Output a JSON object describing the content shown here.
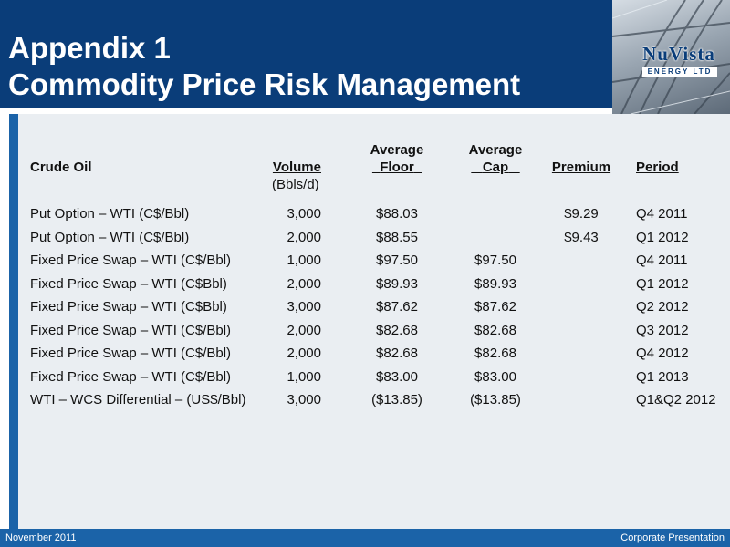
{
  "header": {
    "title_line1": "Appendix 1",
    "title_line2": "Commodity Price Risk Management",
    "logo_word": "NuVista",
    "logo_sub": "ENERGY LTD"
  },
  "table": {
    "headers": {
      "name": "Crude Oil",
      "volume": "Volume",
      "volume_unit": "(Bbls/d)",
      "floor_top": "Average",
      "floor": "Floor",
      "cap_top": "Average",
      "cap": "Cap",
      "premium": "Premium",
      "period": "Period"
    },
    "rows": [
      {
        "name": "Put Option – WTI (C$/Bbl)",
        "volume": "3,000",
        "floor": "$88.03",
        "cap": "",
        "premium": "$9.29",
        "period": "Q4 2011"
      },
      {
        "name": "Put Option – WTI (C$/Bbl)",
        "volume": "2,000",
        "floor": "$88.55",
        "cap": "",
        "premium": "$9.43",
        "period": "Q1 2012"
      },
      {
        "name": "Fixed Price Swap – WTI (C$/Bbl)",
        "volume": "1,000",
        "floor": "$97.50",
        "cap": "$97.50",
        "premium": "",
        "period": "Q4 2011"
      },
      {
        "name": "Fixed Price Swap – WTI (C$Bbl)",
        "volume": "2,000",
        "floor": "$89.93",
        "cap": "$89.93",
        "premium": "",
        "period": "Q1 2012"
      },
      {
        "name": "Fixed Price Swap – WTI (C$Bbl)",
        "volume": "3,000",
        "floor": "$87.62",
        "cap": "$87.62",
        "premium": "",
        "period": "Q2 2012"
      },
      {
        "name": "Fixed Price Swap – WTI (C$/Bbl)",
        "volume": "2,000",
        "floor": "$82.68",
        "cap": "$82.68",
        "premium": "",
        "period": "Q3 2012"
      },
      {
        "name": "Fixed Price Swap – WTI (C$/Bbl)",
        "volume": "2,000",
        "floor": "$82.68",
        "cap": "$82.68",
        "premium": "",
        "period": "Q4 2012"
      },
      {
        "name": "Fixed Price Swap – WTI (C$/Bbl)",
        "volume": "1,000",
        "floor": "$83.00",
        "cap": "$83.00",
        "premium": "",
        "period": "Q1 2013"
      },
      {
        "name": "WTI – WCS Differential – (US$/Bbl)",
        "volume": "3,000",
        "floor": "($13.85)",
        "cap": "($13.85)",
        "premium": "",
        "period": "Q1&Q2 2012"
      }
    ]
  },
  "footer": {
    "date": "November  2011",
    "label": "Corporate Presentation"
  },
  "colors": {
    "header_bg": "#0a3d79",
    "accent": "#1b63a8",
    "content_bg": "#eaeef2"
  }
}
